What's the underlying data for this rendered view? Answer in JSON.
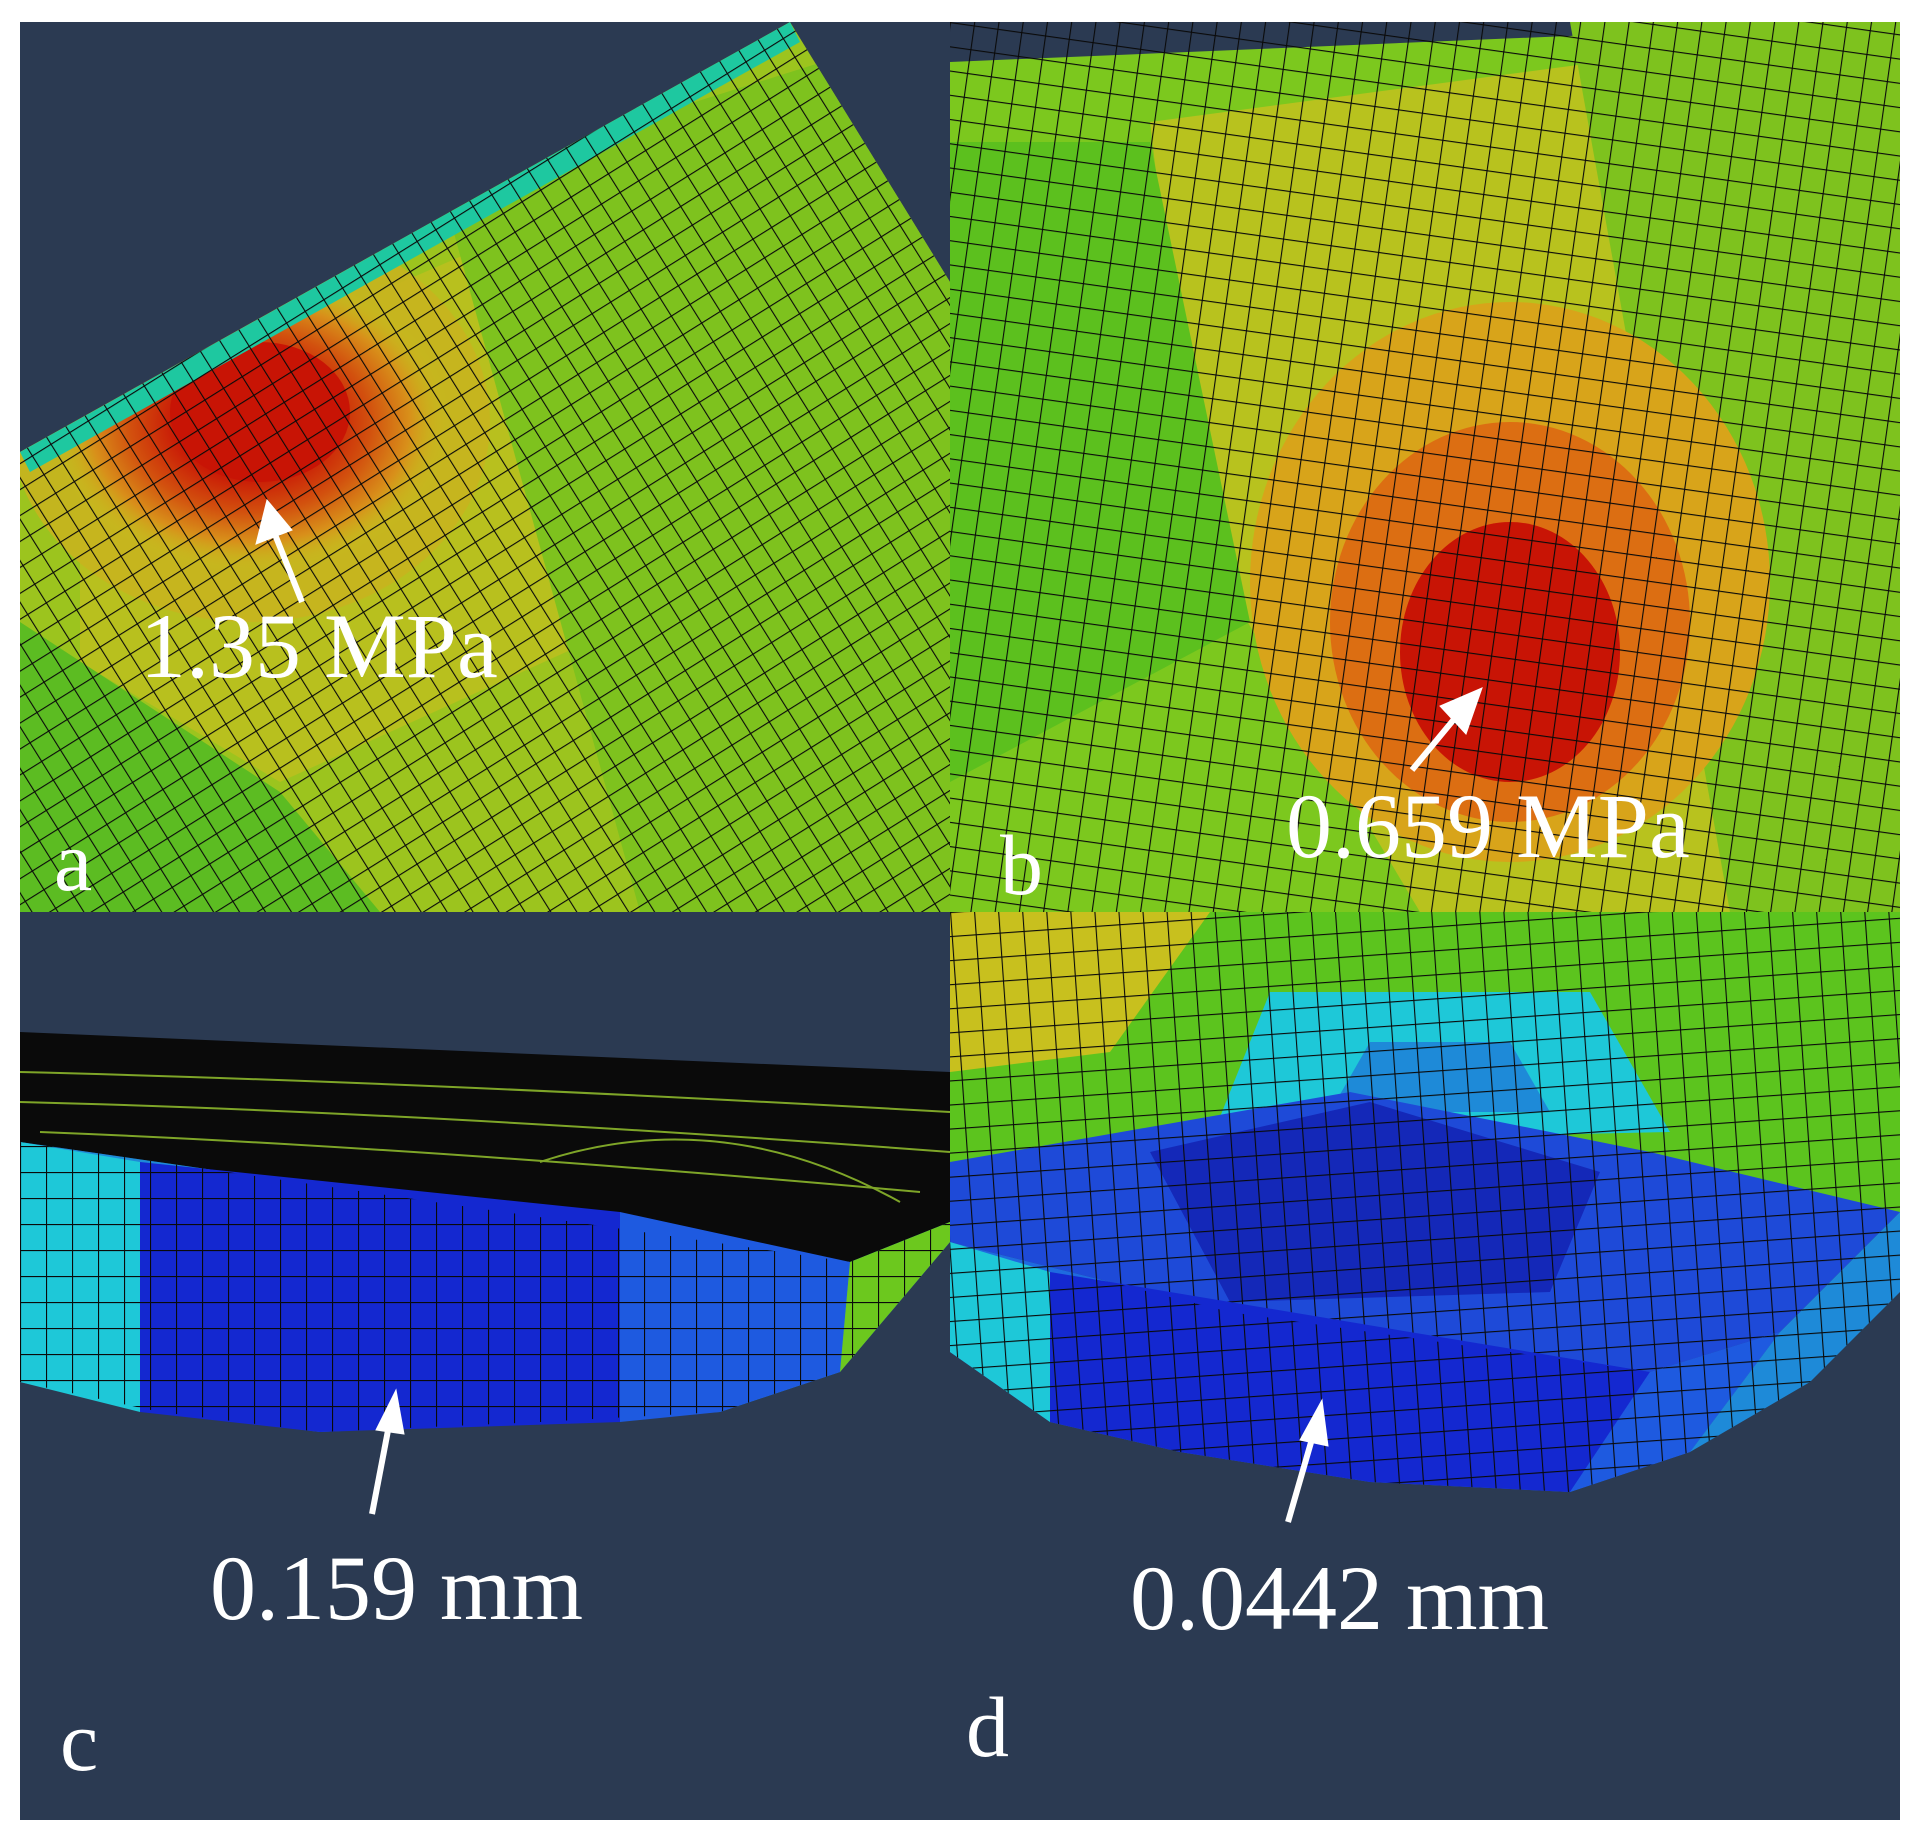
{
  "figure": {
    "background_color": "#2b3a52",
    "panels": [
      {
        "letter": "a",
        "value": "1.35 MPa"
      },
      {
        "letter": "b",
        "value": "0.659 MPa"
      },
      {
        "letter": "c",
        "value": "0.159 mm"
      },
      {
        "letter": "d",
        "value": "0.0442 mm"
      }
    ],
    "colors": {
      "max_red": "#c81405",
      "orange": "#e07a12",
      "yellow": "#c8c81e",
      "green": "#6cc81e",
      "cyan": "#1ec8d8",
      "blue": "#1428d0",
      "mesh_line": "#0a0a0a",
      "arrow": "#ffffff"
    }
  }
}
